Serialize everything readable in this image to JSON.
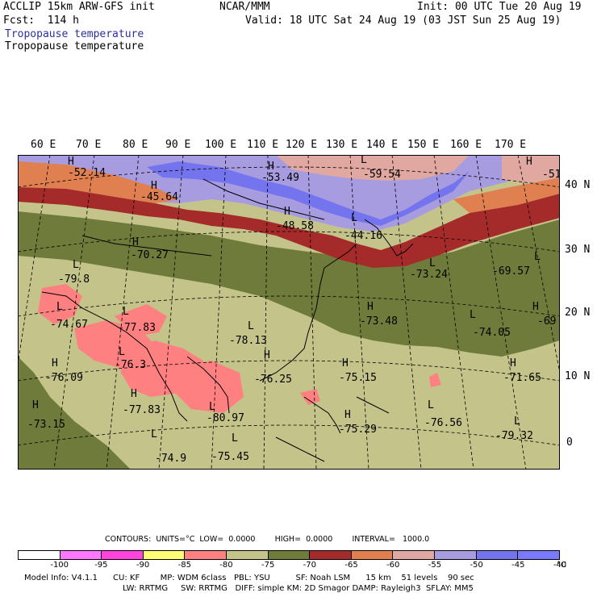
{
  "header": {
    "model": "ACCLIP 15km ARW-GFS init",
    "org": "NCAR/MMM",
    "init": "Init: 00 UTC Tue 20 Aug 19",
    "fcst": "Fcst:  114 h",
    "valid": "Valid: 18 UTC Sat 24 Aug 19 (03 JST Sun 25 Aug 19)",
    "field_blue": "Tropopause temperature",
    "field_black": "Tropopause temperature"
  },
  "map": {
    "lon_labels": [
      "60 E",
      "70 E",
      "80 E",
      "90 E",
      "100 E",
      "110 E",
      "120 E",
      "130 E",
      "140 E",
      "150 E",
      "160 E",
      "170 E"
    ],
    "lat_labels": [
      "40 N",
      "30 N",
      "20 N",
      "10 N",
      "0"
    ],
    "highs_lows": [
      {
        "sym": "H",
        "val": "-52.14"
      },
      {
        "sym": "H",
        "val": "-45.64"
      },
      {
        "sym": "H",
        "val": "-53.49"
      },
      {
        "sym": "L",
        "val": "-59.54"
      },
      {
        "sym": "H",
        "val": "-51"
      },
      {
        "sym": "H",
        "val": "-48.58"
      },
      {
        "sym": "L",
        "val": "-44.16"
      },
      {
        "sym": "H",
        "val": "-70.27"
      },
      {
        "sym": "L",
        "val": "-79.8"
      },
      {
        "sym": "L",
        "val": "-73.24"
      },
      {
        "sym": "L",
        "val": "-69.57"
      },
      {
        "sym": "L",
        "val": "-74.67"
      },
      {
        "sym": "L",
        "val": "-77.83"
      },
      {
        "sym": "L",
        "val": "-78.13"
      },
      {
        "sym": "H",
        "val": "-73.48"
      },
      {
        "sym": "L",
        "val": "-74.05"
      },
      {
        "sym": "H",
        "val": "-69"
      },
      {
        "sym": "H",
        "val": "-76.09"
      },
      {
        "sym": "L",
        "val": "-76.3"
      },
      {
        "sym": "H",
        "val": "-76.25"
      },
      {
        "sym": "H",
        "val": "-75.15"
      },
      {
        "sym": "H",
        "val": "-71.65"
      },
      {
        "sym": "H",
        "val": "-77.83"
      },
      {
        "sym": "L",
        "val": "-80.97"
      },
      {
        "sym": "H",
        "val": "-75.29"
      },
      {
        "sym": "L",
        "val": "-76.56"
      },
      {
        "sym": "L",
        "val": "-79.32"
      },
      {
        "sym": "H",
        "val": "-73.15"
      },
      {
        "sym": "L",
        "val": "-74.9"
      },
      {
        "sym": "L",
        "val": "-75.45"
      }
    ]
  },
  "colorbar": {
    "contours_label": "CONTOURS:  UNITS=°C  LOW=  0.0000        HIGH=  0.0000        INTERVAL=   1000.0",
    "unit": "°C",
    "ticks": [
      "-100",
      "-95",
      "-90",
      "-85",
      "-80",
      "-75",
      "-70",
      "-65",
      "-60",
      "-55",
      "-50",
      "-45",
      "-40"
    ],
    "colors": [
      "#ffffff",
      "#ff77ff",
      "#ff44dd",
      "#ffff77",
      "#ff8080",
      "#c3c38a",
      "#6f7b3a",
      "#a52a2a",
      "#e08050",
      "#e0a8a0",
      "#a89ce0",
      "#7474ee",
      "#7a7aff"
    ]
  },
  "model_info": {
    "line1": "Model Info: V4.1.1      CU: KF        MP: WDM 6class   PBL: YSU          SF: Noah LSM      15 km    51 levels    90 sec",
    "line2": "LW: RRTMG     SW: RRTMG   DIFF: simple KM: 2D Smagor DAMP: Rayleigh3  SFLAY: MM5"
  }
}
